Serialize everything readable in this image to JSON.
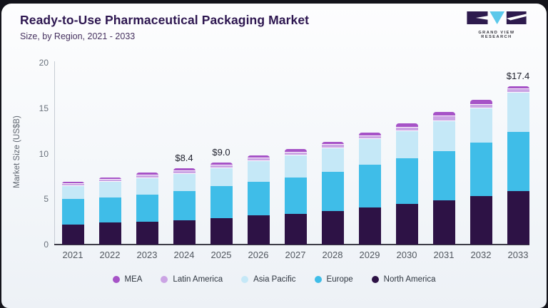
{
  "header": {
    "title": "Ready-to-Use Pharmaceutical Packaging Market",
    "subtitle": "Size, by Region, 2021 - 2033"
  },
  "logo": {
    "text": "GRAND VIEW RESEARCH",
    "dark_color": "#2e1b4e",
    "accent_color": "#5bc8ea"
  },
  "chart_data": {
    "type": "bar",
    "stacked": true,
    "title": "Ready-to-Use Pharmaceutical Packaging Market",
    "xlabel": "",
    "ylabel": "Market Size (US$B)",
    "ylim": [
      0,
      20
    ],
    "yticks": [
      0,
      5,
      10,
      15,
      20
    ],
    "grid": "off",
    "legend_position": "bottom",
    "categories": [
      "2021",
      "2022",
      "2023",
      "2024",
      "2025",
      "2026",
      "2027",
      "2028",
      "2029",
      "2030",
      "2031",
      "2032",
      "2033"
    ],
    "series": [
      {
        "name": "North America",
        "color": "#2d1245",
        "values": [
          2.2,
          2.4,
          2.5,
          2.7,
          2.9,
          3.2,
          3.4,
          3.7,
          4.1,
          4.5,
          4.9,
          5.3,
          5.9
        ]
      },
      {
        "name": "Europe",
        "color": "#3fbde8",
        "values": [
          2.8,
          2.8,
          3.0,
          3.2,
          3.5,
          3.7,
          4.0,
          4.3,
          4.7,
          5.0,
          5.4,
          5.9,
          6.5
        ]
      },
      {
        "name": "Asia Pacific",
        "color": "#c5e8f7",
        "values": [
          1.4,
          1.7,
          1.8,
          1.9,
          2.0,
          2.3,
          2.4,
          2.6,
          2.8,
          3.0,
          3.3,
          3.8,
          4.3
        ]
      },
      {
        "name": "Latin America",
        "color": "#cba4e4",
        "values": [
          0.25,
          0.25,
          0.3,
          0.3,
          0.3,
          0.3,
          0.35,
          0.35,
          0.35,
          0.4,
          0.5,
          0.4,
          0.4
        ]
      },
      {
        "name": "MEA",
        "color": "#a653c7",
        "values": [
          0.25,
          0.25,
          0.3,
          0.3,
          0.3,
          0.3,
          0.35,
          0.35,
          0.35,
          0.4,
          0.5,
          0.5,
          0.3
        ]
      }
    ],
    "totals": [
      6.9,
      7.4,
      7.9,
      8.4,
      9.0,
      9.8,
      10.5,
      11.3,
      12.3,
      13.3,
      14.6,
      15.9,
      17.4
    ],
    "bar_labels": {
      "2024": "$8.4",
      "2025": "$9.0",
      "2033": "$17.4"
    },
    "legend": [
      "MEA",
      "Latin America",
      "Asia Pacific",
      "Europe",
      "North America"
    ]
  }
}
